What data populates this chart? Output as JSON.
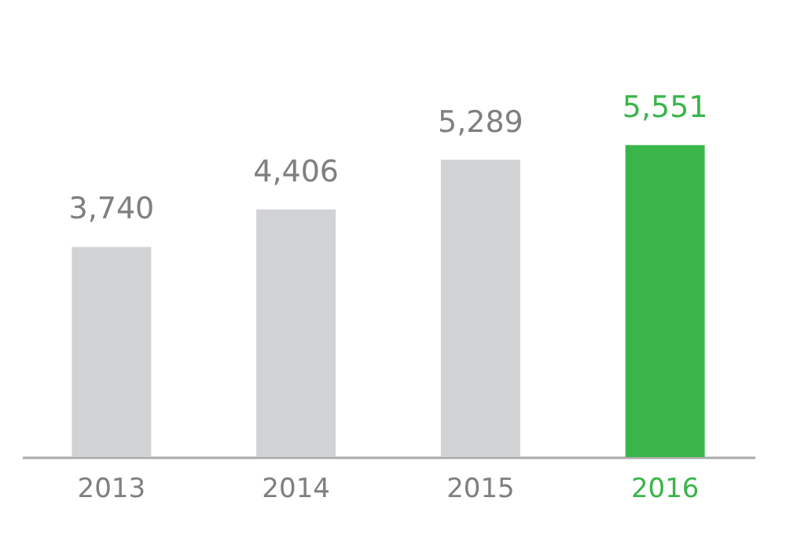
{
  "chart_data": {
    "type": "bar",
    "categories": [
      "2013",
      "2014",
      "2015",
      "2016"
    ],
    "values": [
      3740,
      4406,
      5289,
      5551
    ],
    "colors": [
      "#d1d2d4",
      "#d1d2d4",
      "#d1d2d4",
      "#3ab54a"
    ],
    "value_labels": [
      "3,740",
      "4,406",
      "5,289",
      "5,551"
    ]
  }
}
